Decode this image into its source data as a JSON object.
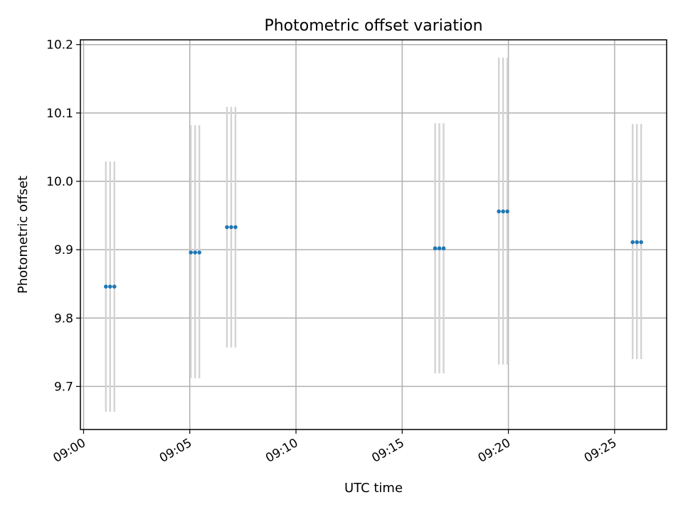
{
  "chart_data": {
    "type": "scatter",
    "title": "Photometric offset variation",
    "xlabel": "UTC time",
    "ylabel": "Photometric offset",
    "x_ticks": [
      "09:00",
      "09:05",
      "09:10",
      "09:15",
      "09:20",
      "09:25"
    ],
    "y_ticks": [
      "9.7",
      "9.8",
      "9.9",
      "10.0",
      "10.1",
      "10.2"
    ],
    "xlim_minutes_after_0900": [
      -0.15,
      27.45
    ],
    "ylim": [
      9.637,
      10.207
    ],
    "grid": true,
    "groups": [
      {
        "times": [
          "09:01:03",
          "09:01:15",
          "09:01:27"
        ],
        "y": 9.846,
        "yerr_low": 9.663,
        "yerr_high": 10.029
      },
      {
        "times": [
          "09:05:03",
          "09:05:15",
          "09:05:27"
        ],
        "y": 9.896,
        "yerr_low": 9.712,
        "yerr_high": 10.082
      },
      {
        "times": [
          "09:06:45",
          "09:06:57",
          "09:07:09"
        ],
        "y": 9.933,
        "yerr_low": 9.757,
        "yerr_high": 10.109
      },
      {
        "times": [
          "09:16:33",
          "09:16:45",
          "09:16:57"
        ],
        "y": 9.902,
        "yerr_low": 9.719,
        "yerr_high": 10.085
      },
      {
        "times": [
          "09:19:33",
          "09:19:45",
          "09:19:57"
        ],
        "y": 9.956,
        "yerr_low": 9.732,
        "yerr_high": 10.181
      },
      {
        "times": [
          "09:25:51",
          "09:26:03",
          "09:26:15"
        ],
        "y": 9.911,
        "yerr_low": 9.74,
        "yerr_high": 10.084
      }
    ],
    "colors": {
      "marker": "#1f77b4",
      "errorbar": "#d3d3d3",
      "grid": "#b0b0b0"
    }
  }
}
